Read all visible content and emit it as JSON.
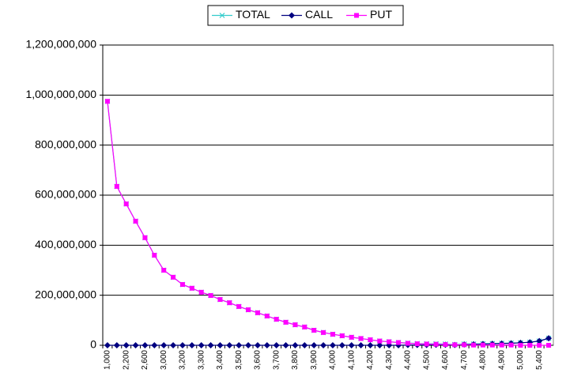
{
  "chart_data": {
    "type": "line",
    "categories": [
      "1,000",
      null,
      "2,200",
      null,
      "2,600",
      null,
      "3,000",
      null,
      "3,200",
      null,
      "3,300",
      null,
      "3,400",
      null,
      "3,500",
      null,
      "3,600",
      null,
      "3,700",
      null,
      "3,800",
      null,
      "3,900",
      null,
      "4,000",
      null,
      "4,100",
      null,
      "4,200",
      null,
      "4,300",
      null,
      "4,400",
      null,
      "4,500",
      null,
      "4,600",
      null,
      "4,700",
      null,
      "4,800",
      null,
      "4,900",
      null,
      "5,000",
      null,
      "5,400",
      null
    ],
    "series": [
      {
        "name": "TOTAL",
        "color": "#33cccc",
        "marker": "x",
        "values": [
          975000000,
          635000000,
          565000000,
          496000000,
          430000000,
          360000000,
          300000000,
          272000000,
          243000000,
          228000000,
          212000000,
          199000000,
          183000000,
          170000000,
          155000000,
          142000000,
          130000000,
          117000000,
          104000000,
          92000000,
          82000000,
          73000000,
          60000000,
          51000000,
          44000000,
          38000000,
          32000000,
          27000000,
          22000000,
          17000000,
          14000000,
          11000000,
          9000000,
          7000000,
          6000000,
          6000000,
          5000000,
          3000000,
          5000000,
          5000000,
          6000000,
          7000000,
          8000000,
          9000000,
          10000000,
          12000000,
          17000000,
          28000000
        ]
      },
      {
        "name": "CALL",
        "color": "#000080",
        "marker": "diamond",
        "values": [
          0,
          0,
          0,
          0,
          0,
          0,
          0,
          0,
          0,
          0,
          0,
          0,
          0,
          0,
          0,
          0,
          0,
          0,
          0,
          0,
          0,
          0,
          0,
          0,
          0,
          0,
          0,
          0,
          0,
          0,
          0,
          0,
          1000000,
          1000000,
          1000000,
          2000000,
          2000000,
          1000000,
          3000000,
          4000000,
          5000000,
          6000000,
          7000000,
          8000000,
          10000000,
          12000000,
          17000000,
          28000000
        ]
      },
      {
        "name": "PUT",
        "color": "#ff00ff",
        "marker": "square",
        "values": [
          975000000,
          635000000,
          565000000,
          496000000,
          430000000,
          360000000,
          300000000,
          272000000,
          243000000,
          228000000,
          212000000,
          199000000,
          183000000,
          170000000,
          155000000,
          142000000,
          130000000,
          117000000,
          104000000,
          92000000,
          82000000,
          73000000,
          60000000,
          51000000,
          44000000,
          38000000,
          32000000,
          27000000,
          22000000,
          17000000,
          14000000,
          11000000,
          8000000,
          6000000,
          5000000,
          4000000,
          3000000,
          2000000,
          2000000,
          1000000,
          1000000,
          1000000,
          1000000,
          1000000,
          0,
          0,
          0,
          0
        ]
      }
    ],
    "ylim": [
      0,
      1200000000
    ],
    "yticks": [
      0,
      {
        "value": 200000000,
        "label": "200,000,000"
      },
      {
        "value": 400000000,
        "label": "400,000,000"
      },
      {
        "value": 600000000,
        "label": "600,000,000"
      },
      {
        "value": 800000000,
        "label": "800,000,000"
      },
      {
        "value": 1000000000,
        "label": "1,000,000,000"
      },
      {
        "value": 1200000000,
        "label": "1,200,000,000"
      }
    ],
    "grid": true,
    "legend": "top"
  }
}
